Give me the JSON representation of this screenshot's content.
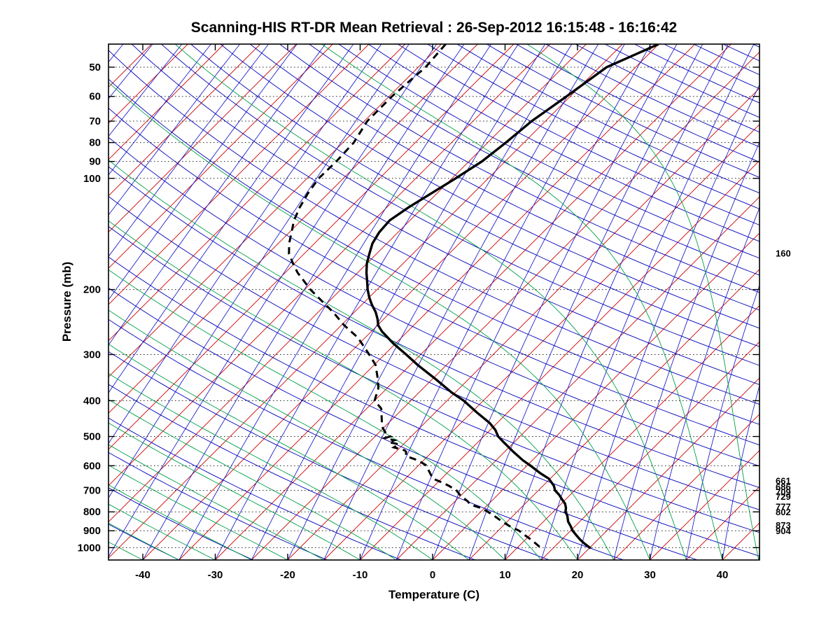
{
  "chart_data": {
    "type": "line",
    "variant": "skew-t-log-p-sounding",
    "title": "Scanning-HIS RT-DR Mean Retrieval : 26-Sep-2012 16:15:48 - 16:16:42",
    "xlabel": "Temperature (C)",
    "ylabel": "Pressure (mb)",
    "x_ticks": [
      -40,
      -30,
      -20,
      -10,
      0,
      10,
      20,
      30,
      40
    ],
    "y_ticks": [
      50,
      60,
      70,
      80,
      90,
      100,
      200,
      300,
      400,
      500,
      600,
      700,
      800,
      900,
      1000
    ],
    "pressure_range_mb": [
      43.3,
      1080
    ],
    "temperature_axis_range_c": [
      -44.7,
      45.1
    ],
    "grid": {
      "pressure_line_style": "dotted",
      "pressure_line_color": "#222222"
    },
    "right_axis_labels": [
      160,
      661,
      686,
      709,
      729,
      777,
      802,
      873,
      904
    ],
    "background_isopleths": {
      "isotherms": {
        "color": "#cc0000",
        "from_c": -110,
        "to_c": 45,
        "step_c": 5,
        "width": 0.9
      },
      "dry_adiabats": {
        "color": "#0000bb",
        "theta_from_k": 233,
        "theta_to_k": 613,
        "step_k": 10,
        "width": 0.9
      },
      "moist_adiabats": {
        "color": "#00a04a",
        "surface_from_c": -40,
        "surface_to_c": 45,
        "step_c": 5,
        "width": 0.9
      },
      "humidity_isopleths": {
        "color": "#2222cc",
        "anchor_from_c": -110,
        "anchor_to_c": 45,
        "step_c": 5,
        "width": 0.9
      }
    },
    "series": [
      {
        "name": "temperature",
        "line": "solid",
        "color": "#000000",
        "width": 3.4,
        "points_p_t": [
          [
            43.3,
            -40
          ],
          [
            50,
            -44
          ],
          [
            60,
            -45.5
          ],
          [
            70,
            -46.9
          ],
          [
            80,
            -47.5
          ],
          [
            90,
            -48.2
          ],
          [
            100,
            -49.5
          ],
          [
            110,
            -50.8
          ],
          [
            120,
            -52
          ],
          [
            130,
            -52.8
          ],
          [
            140,
            -52.6
          ],
          [
            150,
            -52
          ],
          [
            160,
            -51
          ],
          [
            170,
            -50
          ],
          [
            180,
            -48.8
          ],
          [
            190,
            -47.5
          ],
          [
            200,
            -46.3
          ],
          [
            210,
            -45
          ],
          [
            220,
            -43.6
          ],
          [
            230,
            -42.1
          ],
          [
            240,
            -40.9
          ],
          [
            250,
            -39.9
          ],
          [
            260,
            -38.5
          ],
          [
            280,
            -35.3
          ],
          [
            300,
            -32
          ],
          [
            320,
            -29
          ],
          [
            350,
            -24.5
          ],
          [
            380,
            -20.5
          ],
          [
            400,
            -17.7
          ],
          [
            430,
            -14.3
          ],
          [
            460,
            -11
          ],
          [
            480,
            -9.3
          ],
          [
            500,
            -8
          ],
          [
            520,
            -6.3
          ],
          [
            550,
            -3.8
          ],
          [
            580,
            -1.3
          ],
          [
            600,
            0.5
          ],
          [
            630,
            3
          ],
          [
            650,
            4.8
          ],
          [
            680,
            6.5
          ],
          [
            700,
            7.3
          ],
          [
            720,
            8.5
          ],
          [
            740,
            9.5
          ],
          [
            760,
            10.5
          ],
          [
            780,
            11.2
          ],
          [
            800,
            11.7
          ],
          [
            820,
            12.5
          ],
          [
            850,
            13.4
          ],
          [
            875,
            14.4
          ],
          [
            900,
            15.3
          ],
          [
            925,
            16.4
          ],
          [
            950,
            17.5
          ],
          [
            975,
            18.7
          ],
          [
            1000,
            20
          ],
          [
            1005,
            20.2
          ]
        ]
      },
      {
        "name": "dewpoint",
        "line": "dashed",
        "color": "#000000",
        "width": 3.0,
        "points_p_t": [
          [
            43.3,
            -69.4
          ],
          [
            50,
            -69
          ],
          [
            60,
            -69.6
          ],
          [
            70,
            -69.6
          ],
          [
            80,
            -68.5
          ],
          [
            90,
            -68.3
          ],
          [
            100,
            -68.4
          ],
          [
            110,
            -67.8
          ],
          [
            120,
            -67
          ],
          [
            130,
            -66
          ],
          [
            140,
            -64.7
          ],
          [
            150,
            -63.5
          ],
          [
            160,
            -62.1
          ],
          [
            170,
            -60.2
          ],
          [
            180,
            -58.3
          ],
          [
            190,
            -56.2
          ],
          [
            200,
            -54.2
          ],
          [
            215,
            -51
          ],
          [
            230,
            -48
          ],
          [
            250,
            -44.6
          ],
          [
            270,
            -41
          ],
          [
            285,
            -39
          ],
          [
            300,
            -37.1
          ],
          [
            320,
            -34.8
          ],
          [
            350,
            -32.5
          ],
          [
            370,
            -31.2
          ],
          [
            400,
            -30
          ],
          [
            420,
            -28
          ],
          [
            450,
            -26.4
          ],
          [
            470,
            -25.4
          ],
          [
            485,
            -24.3
          ],
          [
            495,
            -23.6
          ],
          [
            500,
            -22.9
          ],
          [
            505,
            -23.4
          ],
          [
            512,
            -21.8
          ],
          [
            518,
            -22.3
          ],
          [
            525,
            -20.6
          ],
          [
            535,
            -20.9
          ],
          [
            545,
            -19.0
          ],
          [
            550,
            -18.6
          ],
          [
            565,
            -18
          ],
          [
            580,
            -15.8
          ],
          [
            600,
            -13.8
          ],
          [
            620,
            -12.8
          ],
          [
            650,
            -11.2
          ],
          [
            665,
            -9.5
          ],
          [
            680,
            -8.0
          ],
          [
            700,
            -6.3
          ],
          [
            720,
            -5.2
          ],
          [
            750,
            -3.2
          ],
          [
            765,
            -2.4
          ],
          [
            780,
            -0.6
          ],
          [
            800,
            1.0
          ],
          [
            820,
            2.4
          ],
          [
            850,
            4.3
          ],
          [
            875,
            6.0
          ],
          [
            900,
            7.9
          ],
          [
            925,
            9.3
          ],
          [
            950,
            10.7
          ],
          [
            975,
            12.0
          ],
          [
            1000,
            13.2
          ],
          [
            1005,
            13.4
          ]
        ]
      }
    ]
  }
}
